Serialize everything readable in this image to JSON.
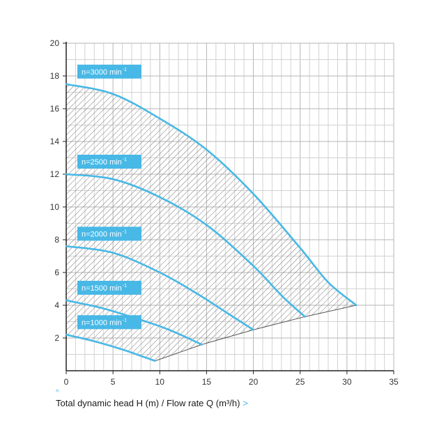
{
  "chart_data": {
    "type": "line",
    "xlabel": "Total dynamic head H (m) / Flow rate Q (m³/h)",
    "ylabel": "",
    "x_ticks": [
      "0",
      "5",
      "10",
      "15",
      "20",
      "25",
      "30",
      "35"
    ],
    "y_ticks": [
      "2",
      "4",
      "6",
      "8",
      "10",
      "12",
      "14",
      "16",
      "18",
      "20"
    ],
    "xlim": [
      0,
      35
    ],
    "ylim": [
      0,
      20
    ],
    "grid": true,
    "accent_color": "#48b8e6",
    "series": [
      {
        "name": "n=3000 min⁻¹",
        "label_main": "n=3000 min",
        "label_sup": "-1",
        "x": [
          0,
          5,
          10,
          15,
          20,
          25,
          28,
          31
        ],
        "y": [
          17.5,
          16.9,
          15.4,
          13.5,
          10.8,
          7.5,
          5.4,
          4.0
        ]
      },
      {
        "name": "n=2500 min⁻¹",
        "label_main": "n=2500 min",
        "label_sup": "-1",
        "x": [
          0,
          5,
          10,
          15,
          20,
          23,
          25.5
        ],
        "y": [
          12.0,
          11.7,
          10.6,
          8.9,
          6.4,
          4.6,
          3.3
        ]
      },
      {
        "name": "n=2000 min⁻¹",
        "label_main": "n=2000 min",
        "label_sup": "-1",
        "x": [
          0,
          5,
          10,
          14,
          17,
          20
        ],
        "y": [
          7.6,
          7.2,
          6.0,
          4.7,
          3.6,
          2.5
        ]
      },
      {
        "name": "n=1500 min⁻¹",
        "label_main": "n=1500 min",
        "label_sup": "-1",
        "x": [
          0,
          4,
          8,
          11,
          14.5
        ],
        "y": [
          4.3,
          3.8,
          3.1,
          2.5,
          1.6
        ]
      },
      {
        "name": "n=1000 min⁻¹",
        "label_main": "n=1000 min",
        "label_sup": "-1",
        "x": [
          0,
          3,
          6,
          8,
          9.5
        ],
        "y": [
          2.2,
          1.8,
          1.3,
          0.9,
          0.6
        ]
      }
    ],
    "operating_range_boundary": {
      "x": [
        9.5,
        14.5,
        20,
        25.5,
        31
      ],
      "y": [
        0.6,
        1.6,
        2.5,
        3.3,
        4.0
      ]
    }
  }
}
